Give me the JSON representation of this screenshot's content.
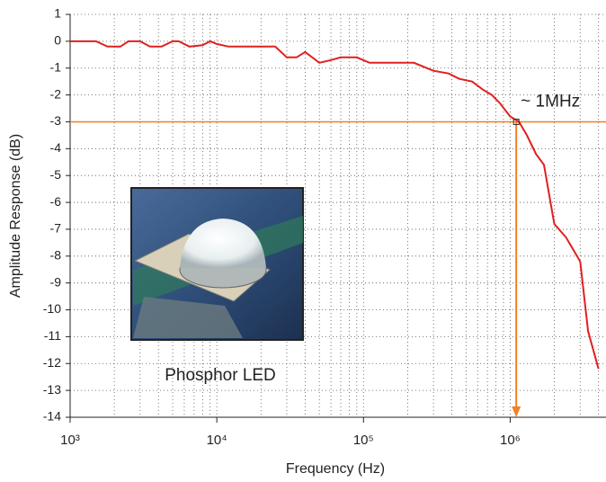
{
  "chart_data": {
    "type": "line",
    "x_label": "Frequency (Hz)",
    "y_label": "Amplitude Response (dB)",
    "log_x": true,
    "grid": true,
    "minor_grid": true,
    "xlim": [
      1000,
      4500000
    ],
    "xticks": [
      {
        "value": 1000,
        "label": "10³"
      },
      {
        "value": 10000,
        "label": "10⁴"
      },
      {
        "value": 100000,
        "label": "10⁵"
      },
      {
        "value": 1000000,
        "label": "10⁶"
      }
    ],
    "ylim": [
      -14,
      1
    ],
    "yticks": [
      -14,
      -13,
      -12,
      -11,
      -10,
      -9,
      -8,
      -7,
      -6,
      -5,
      -4,
      -3,
      -2,
      -1,
      0,
      1
    ],
    "x": [
      1000,
      1500,
      1800,
      2200,
      2500,
      3000,
      3500,
      4200,
      5000,
      5500,
      6500,
      8000,
      9000,
      10000,
      12000,
      25000,
      30000,
      35000,
      40000,
      50000,
      60000,
      70000,
      90000,
      110000,
      220000,
      300000,
      380000,
      450000,
      550000,
      650000,
      750000,
      850000,
      1000000,
      1150000,
      1300000,
      1500000,
      1700000,
      2000000,
      2400000,
      3000000,
      3400000,
      4000000
    ],
    "series": [
      {
        "name": "Phosphor LED",
        "color": "#e02020",
        "values": [
          0,
          0,
          -0.2,
          -0.2,
          0,
          0,
          -0.2,
          -0.2,
          0,
          0,
          -0.2,
          -0.15,
          0,
          -0.1,
          -0.2,
          -0.2,
          -0.6,
          -0.6,
          -0.4,
          -0.8,
          -0.7,
          -0.6,
          -0.6,
          -0.8,
          -0.8,
          -1.1,
          -1.2,
          -1.4,
          -1.5,
          -1.8,
          -2.0,
          -2.3,
          -2.8,
          -3.0,
          -3.5,
          -4.2,
          -4.6,
          -6.8,
          -7.3,
          -8.2,
          -10.8,
          -12.2
        ]
      }
    ],
    "reference_line_y": -3,
    "reference_line_x": 1100000,
    "reference_color": "#f08020",
    "annotation": "~ 1MHz",
    "inset_caption": "Phosphor LED"
  }
}
